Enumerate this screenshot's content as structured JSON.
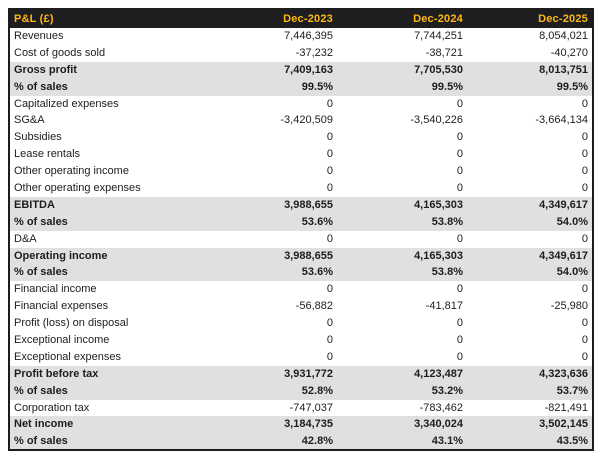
{
  "colors": {
    "header_bg": "#1e1e20",
    "header_text": "#fdb813",
    "subtotal_bg": "#e0e0e0",
    "body_text": "#1d1d1d",
    "border": "#1d1d1d"
  },
  "chart_data": {
    "type": "table",
    "title": "P&L (£)",
    "columns": [
      "Dec-2023",
      "Dec-2024",
      "Dec-2025"
    ],
    "rows": [
      {
        "label": "Revenues",
        "values": [
          "7,446,395",
          "7,744,251",
          "8,054,021"
        ],
        "style": "normal"
      },
      {
        "label": "Cost of goods sold",
        "values": [
          "-37,232",
          "-38,721",
          "-40,270"
        ],
        "style": "normal"
      },
      {
        "label": "Gross profit",
        "values": [
          "7,409,163",
          "7,705,530",
          "8,013,751"
        ],
        "style": "subtotal"
      },
      {
        "label": "% of sales",
        "values": [
          "99.5%",
          "99.5%",
          "99.5%"
        ],
        "style": "subtotal"
      },
      {
        "label": "Capitalized expenses",
        "values": [
          "0",
          "0",
          "0"
        ],
        "style": "normal"
      },
      {
        "label": "SG&A",
        "values": [
          "-3,420,509",
          "-3,540,226",
          "-3,664,134"
        ],
        "style": "normal"
      },
      {
        "label": "Subsidies",
        "values": [
          "0",
          "0",
          "0"
        ],
        "style": "normal"
      },
      {
        "label": "Lease rentals",
        "values": [
          "0",
          "0",
          "0"
        ],
        "style": "normal"
      },
      {
        "label": "Other operating income",
        "values": [
          "0",
          "0",
          "0"
        ],
        "style": "normal"
      },
      {
        "label": "Other operating expenses",
        "values": [
          "0",
          "0",
          "0"
        ],
        "style": "normal"
      },
      {
        "label": "EBITDA",
        "values": [
          "3,988,655",
          "4,165,303",
          "4,349,617"
        ],
        "style": "subtotal"
      },
      {
        "label": "% of sales",
        "values": [
          "53.6%",
          "53.8%",
          "54.0%"
        ],
        "style": "subtotal"
      },
      {
        "label": "D&A",
        "values": [
          "0",
          "0",
          "0"
        ],
        "style": "normal"
      },
      {
        "label": "Operating income",
        "values": [
          "3,988,655",
          "4,165,303",
          "4,349,617"
        ],
        "style": "subtotal"
      },
      {
        "label": "% of sales",
        "values": [
          "53.6%",
          "53.8%",
          "54.0%"
        ],
        "style": "subtotal"
      },
      {
        "label": "Financial income",
        "values": [
          "0",
          "0",
          "0"
        ],
        "style": "normal"
      },
      {
        "label": "Financial expenses",
        "values": [
          "-56,882",
          "-41,817",
          "-25,980"
        ],
        "style": "normal"
      },
      {
        "label": "Profit (loss) on disposal",
        "values": [
          "0",
          "0",
          "0"
        ],
        "style": "normal"
      },
      {
        "label": "Exceptional income",
        "values": [
          "0",
          "0",
          "0"
        ],
        "style": "normal"
      },
      {
        "label": "Exceptional expenses",
        "values": [
          "0",
          "0",
          "0"
        ],
        "style": "normal"
      },
      {
        "label": "Profit before tax",
        "values": [
          "3,931,772",
          "4,123,487",
          "4,323,636"
        ],
        "style": "subtotal"
      },
      {
        "label": "% of sales",
        "values": [
          "52.8%",
          "53.2%",
          "53.7%"
        ],
        "style": "subtotal"
      },
      {
        "label": "Corporation tax",
        "values": [
          "-747,037",
          "-783,462",
          "-821,491"
        ],
        "style": "normal"
      },
      {
        "label": "Net income",
        "values": [
          "3,184,735",
          "3,340,024",
          "3,502,145"
        ],
        "style": "subtotal"
      },
      {
        "label": "% of sales",
        "values": [
          "42.8%",
          "43.1%",
          "43.5%"
        ],
        "style": "subtotal"
      }
    ]
  }
}
